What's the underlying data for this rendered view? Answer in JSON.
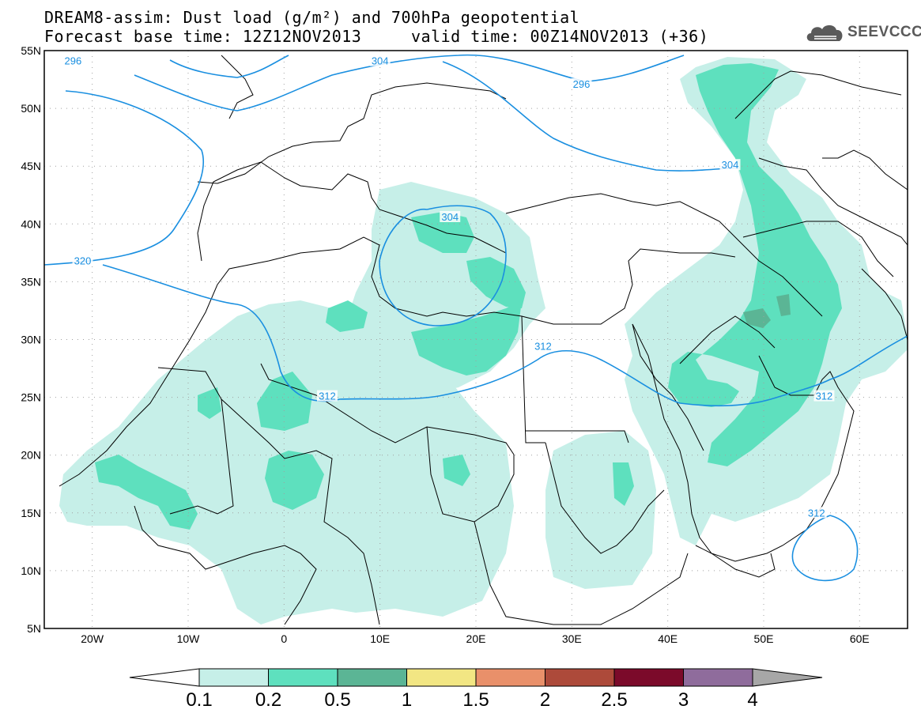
{
  "header": {
    "title_line1": "DREAM8-assim: Dust load (g/m²) and 700hPa geopotential",
    "title_line2": "Forecast base time: 12Z12NOV2013     valid time: 00Z14NOV2013 (+36)",
    "logo_text": "SEEVCCC"
  },
  "map": {
    "lon_range": [
      -25,
      65
    ],
    "lat_range": [
      5,
      55
    ],
    "lat_labels": [
      "55N",
      "50N",
      "45N",
      "40N",
      "35N",
      "30N",
      "25N",
      "20N",
      "15N",
      "10N",
      "5N"
    ],
    "lon_labels": [
      "20W",
      "10W",
      "0",
      "10E",
      "20E",
      "30E",
      "40E",
      "50E",
      "60E"
    ],
    "contour_color": "#1a8fe0",
    "contour_labels": [
      {
        "text": "296",
        "lon": -22.0,
        "lat": 54.0
      },
      {
        "text": "304",
        "lon": 10.0,
        "lat": 54.0
      },
      {
        "text": "296",
        "lon": 31.0,
        "lat": 52.0
      },
      {
        "text": "304",
        "lon": 46.5,
        "lat": 45.0
      },
      {
        "text": "304",
        "lon": 17.3,
        "lat": 40.5
      },
      {
        "text": "320",
        "lon": -21.0,
        "lat": 36.7
      },
      {
        "text": "312",
        "lon": 4.5,
        "lat": 25.0
      },
      {
        "text": "312",
        "lon": 27.0,
        "lat": 29.3
      },
      {
        "text": "312",
        "lon": 56.3,
        "lat": 25.0
      },
      {
        "text": "312",
        "lon": 55.5,
        "lat": 14.9
      }
    ]
  },
  "colorbar": {
    "labels": [
      "0.1",
      "0.2",
      "0.5",
      "1",
      "1.5",
      "2",
      "2.5",
      "3",
      "4"
    ],
    "colors": [
      "#c6efe8",
      "#5ee0be",
      "#5bb595",
      "#f2e683",
      "#e9906a",
      "#ad4a3a",
      "#7b0a2a",
      "#8f6c9c"
    ],
    "left_arrow_color": "#ffffff",
    "right_arrow_color": "#a7a7a7"
  },
  "dust_colors": {
    "light": "#c6efe8",
    "medium": "#5ee0be",
    "dark": "#5bb595"
  }
}
